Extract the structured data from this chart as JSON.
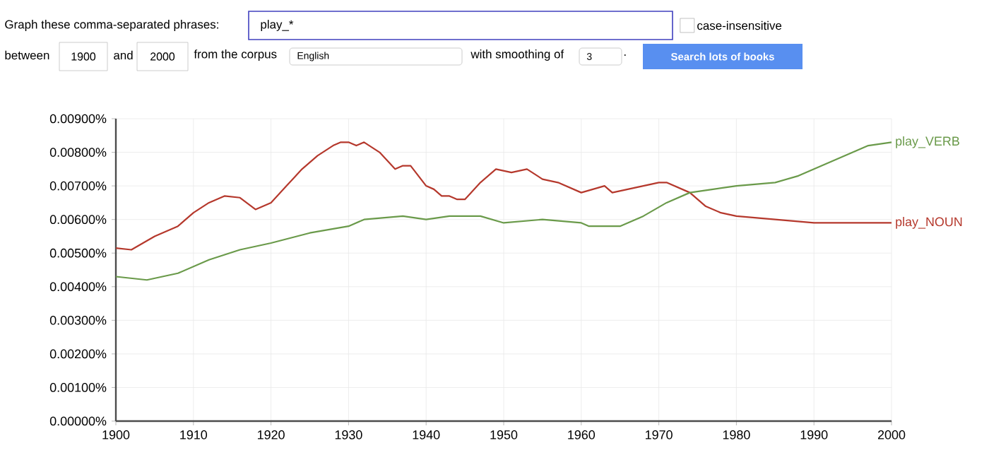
{
  "chart_data": {
    "type": "line",
    "annotations": [
      "Graph these comma-separated phrases:",
      "play_*",
      "case-insensitive",
      "between",
      "1900",
      "and",
      "2000",
      "from the corpus",
      "English",
      "with smoothing of",
      "3",
      ".",
      "Search lots of books"
    ],
    "xlim": [
      1900,
      2000
    ],
    "xticks": [
      1900,
      1910,
      1920,
      1930,
      1940,
      1950,
      1960,
      1970,
      1980,
      1990,
      2000
    ],
    "ylim": [
      0,
      0.009
    ],
    "yticks": [
      {
        "value": 0,
        "label": "0.00000%"
      },
      {
        "value": 0.001,
        "label": "0.00100%"
      },
      {
        "value": 0.002,
        "label": "0.00200%"
      },
      {
        "value": 0.003,
        "label": "0.00300%"
      },
      {
        "value": 0.004,
        "label": "0.00400%"
      },
      {
        "value": 0.005,
        "label": "0.00500%"
      },
      {
        "value": 0.006,
        "label": "0.00600%"
      },
      {
        "value": 0.007,
        "label": "0.00700%"
      },
      {
        "value": 0.008,
        "label": "0.00800%"
      },
      {
        "value": 0.009,
        "label": "0.00900%"
      }
    ],
    "grid": true,
    "legend": false,
    "marker": "none",
    "line_style": "solid",
    "series": [
      {
        "name": "play_NOUN",
        "color": "#b5382c",
        "x": [
          1900,
          1902,
          1905,
          1908,
          1910,
          1912,
          1914,
          1916,
          1918,
          1920,
          1922,
          1924,
          1926,
          1928,
          1929,
          1930,
          1931,
          1932,
          1934,
          1936,
          1937,
          1938,
          1940,
          1941,
          1942,
          1943,
          1944,
          1945,
          1947,
          1949,
          1951,
          1953,
          1955,
          1957,
          1960,
          1963,
          1964,
          1966,
          1970,
          1971,
          1974,
          1976,
          1978,
          1980,
          1985,
          1990,
          1992,
          1995,
          1998,
          2000
        ],
        "values": [
          0.00515,
          0.0051,
          0.0055,
          0.0058,
          0.0062,
          0.0065,
          0.0067,
          0.00665,
          0.0063,
          0.0065,
          0.007,
          0.0075,
          0.0079,
          0.0082,
          0.0083,
          0.0083,
          0.0082,
          0.0083,
          0.008,
          0.0075,
          0.0076,
          0.0076,
          0.007,
          0.0069,
          0.0067,
          0.0067,
          0.0066,
          0.0066,
          0.0071,
          0.0075,
          0.0074,
          0.0075,
          0.0072,
          0.0071,
          0.0068,
          0.007,
          0.0068,
          0.0069,
          0.0071,
          0.0071,
          0.0068,
          0.0064,
          0.0062,
          0.0061,
          0.006,
          0.0059,
          0.0059,
          0.0059,
          0.0059,
          0.0059
        ]
      },
      {
        "name": "play_VERB",
        "color": "#6a9a4a",
        "x": [
          1900,
          1904,
          1908,
          1912,
          1916,
          1920,
          1925,
          1930,
          1932,
          1937,
          1940,
          1943,
          1947,
          1950,
          1955,
          1960,
          1961,
          1965,
          1968,
          1971,
          1974,
          1977,
          1980,
          1985,
          1988,
          1990,
          1993,
          1997,
          2000
        ],
        "values": [
          0.0043,
          0.0042,
          0.0044,
          0.0048,
          0.0051,
          0.0053,
          0.0056,
          0.0058,
          0.006,
          0.0061,
          0.006,
          0.0061,
          0.0061,
          0.0059,
          0.006,
          0.0059,
          0.0058,
          0.0058,
          0.0061,
          0.0065,
          0.0068,
          0.0069,
          0.007,
          0.0071,
          0.0073,
          0.0075,
          0.0078,
          0.0082,
          0.0083
        ]
      }
    ]
  }
}
